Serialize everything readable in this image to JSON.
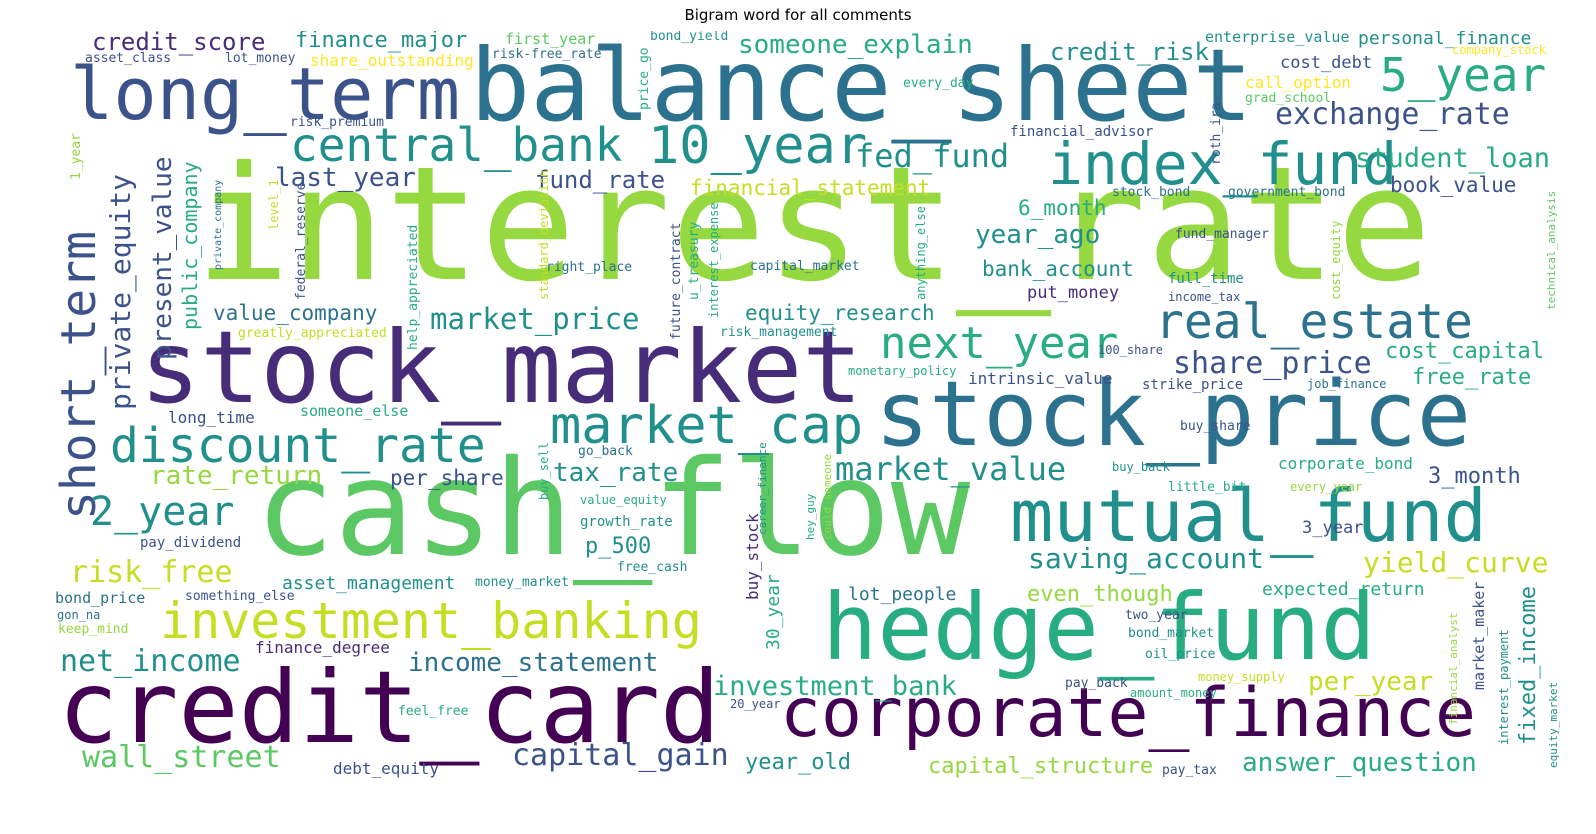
{
  "title": "Bigram word for all comments",
  "palette": {
    "dark_purple": "#440154",
    "purple": "#472c7a",
    "indigo": "#3b528b",
    "blue": "#2c728e",
    "teal": "#21908d",
    "green_teal": "#27ad81",
    "green": "#5cc863",
    "light_green": "#95d840",
    "yellow_green": "#c2df23",
    "yellow": "#fde725"
  },
  "words": [
    "interest_rate",
    "cash_flow",
    "stock_market",
    "balance_sheet",
    "credit_card",
    "hedge_fund",
    "stock_price",
    "long_term",
    "mutual_fund",
    "corporate_finance",
    "index_fund",
    "investment_banking",
    "real_estate",
    "discount_rate",
    "central_bank",
    "10_year",
    "market_cap",
    "short_term",
    "5_year",
    "next_year",
    "credit_score",
    "finance_major",
    "someone_explain",
    "credit_risk",
    "enterprise_value",
    "personal_finance",
    "company_stock",
    "first_year",
    "bond_yield",
    "risk-free_rate",
    "asset_class",
    "lot_money",
    "share_outstanding",
    "cost_debt",
    "call_option",
    "grad_school",
    "every_day",
    "price_go",
    "roth_ira",
    "financial_advisor",
    "exchange_rate",
    "risk_premium",
    "1_year",
    "private_company",
    "level_1",
    "fed_fund",
    "student_loan",
    "last_year",
    "fund_rate",
    "financial_statement",
    "book_value",
    "stock_bond",
    "government_bond",
    "6_month",
    "technical_analysis",
    "private_equity",
    "present_value",
    "public_company",
    "federal_reserve",
    "help_appreciated",
    "standard_deviation",
    "u_treasury",
    "interest_expense",
    "anything_else",
    "cost_equity",
    "year_ago",
    "fund_manager",
    "capital_market",
    "right_place",
    "future_contract",
    "bank_account",
    "full_time",
    "income_tax",
    "value_company",
    "equity_research",
    "market_price",
    "put_money",
    "greatly_appreciated",
    "risk_management",
    "share_price",
    "cost_capital",
    "100_share",
    "monetary_policy",
    "intrinsic_value",
    "strike_price",
    "job_finance",
    "free_rate",
    "long_time",
    "someone_else",
    "buy_share",
    "go_back",
    "buy_sell",
    "tax_rate",
    "market_value",
    "corporate_bond",
    "3_month",
    "rate_return",
    "per_share",
    "2_year",
    "buy_back",
    "little_bit",
    "every_year",
    "value_equity",
    "growth_rate",
    "career_finance",
    "hey_guy",
    "could_someone",
    "3_year",
    "pay_dividend",
    "p_500",
    "saving_account",
    "yield_curve",
    "risk_free",
    "buy_stock",
    "free_cash",
    "asset_management",
    "money_market",
    "expected_return",
    "bond_price",
    "something_else",
    "gon_na",
    "30_year",
    "lot_people",
    "even_though",
    "two_year",
    "keep_mind",
    "bond_market",
    "net_income",
    "finance_degree",
    "income_statement",
    "oil_price",
    "market_maker",
    "fixed_income",
    "investment_bank",
    "per_year",
    "money_supply",
    "financial_analyst",
    "interest_payment",
    "equity_market",
    "pay_back",
    "amount_money",
    "feel_free",
    "20_year",
    "wall_street",
    "debt_equity",
    "capital_gain",
    "year_old",
    "capital_structure",
    "answer_question",
    "pay_tax"
  ]
}
